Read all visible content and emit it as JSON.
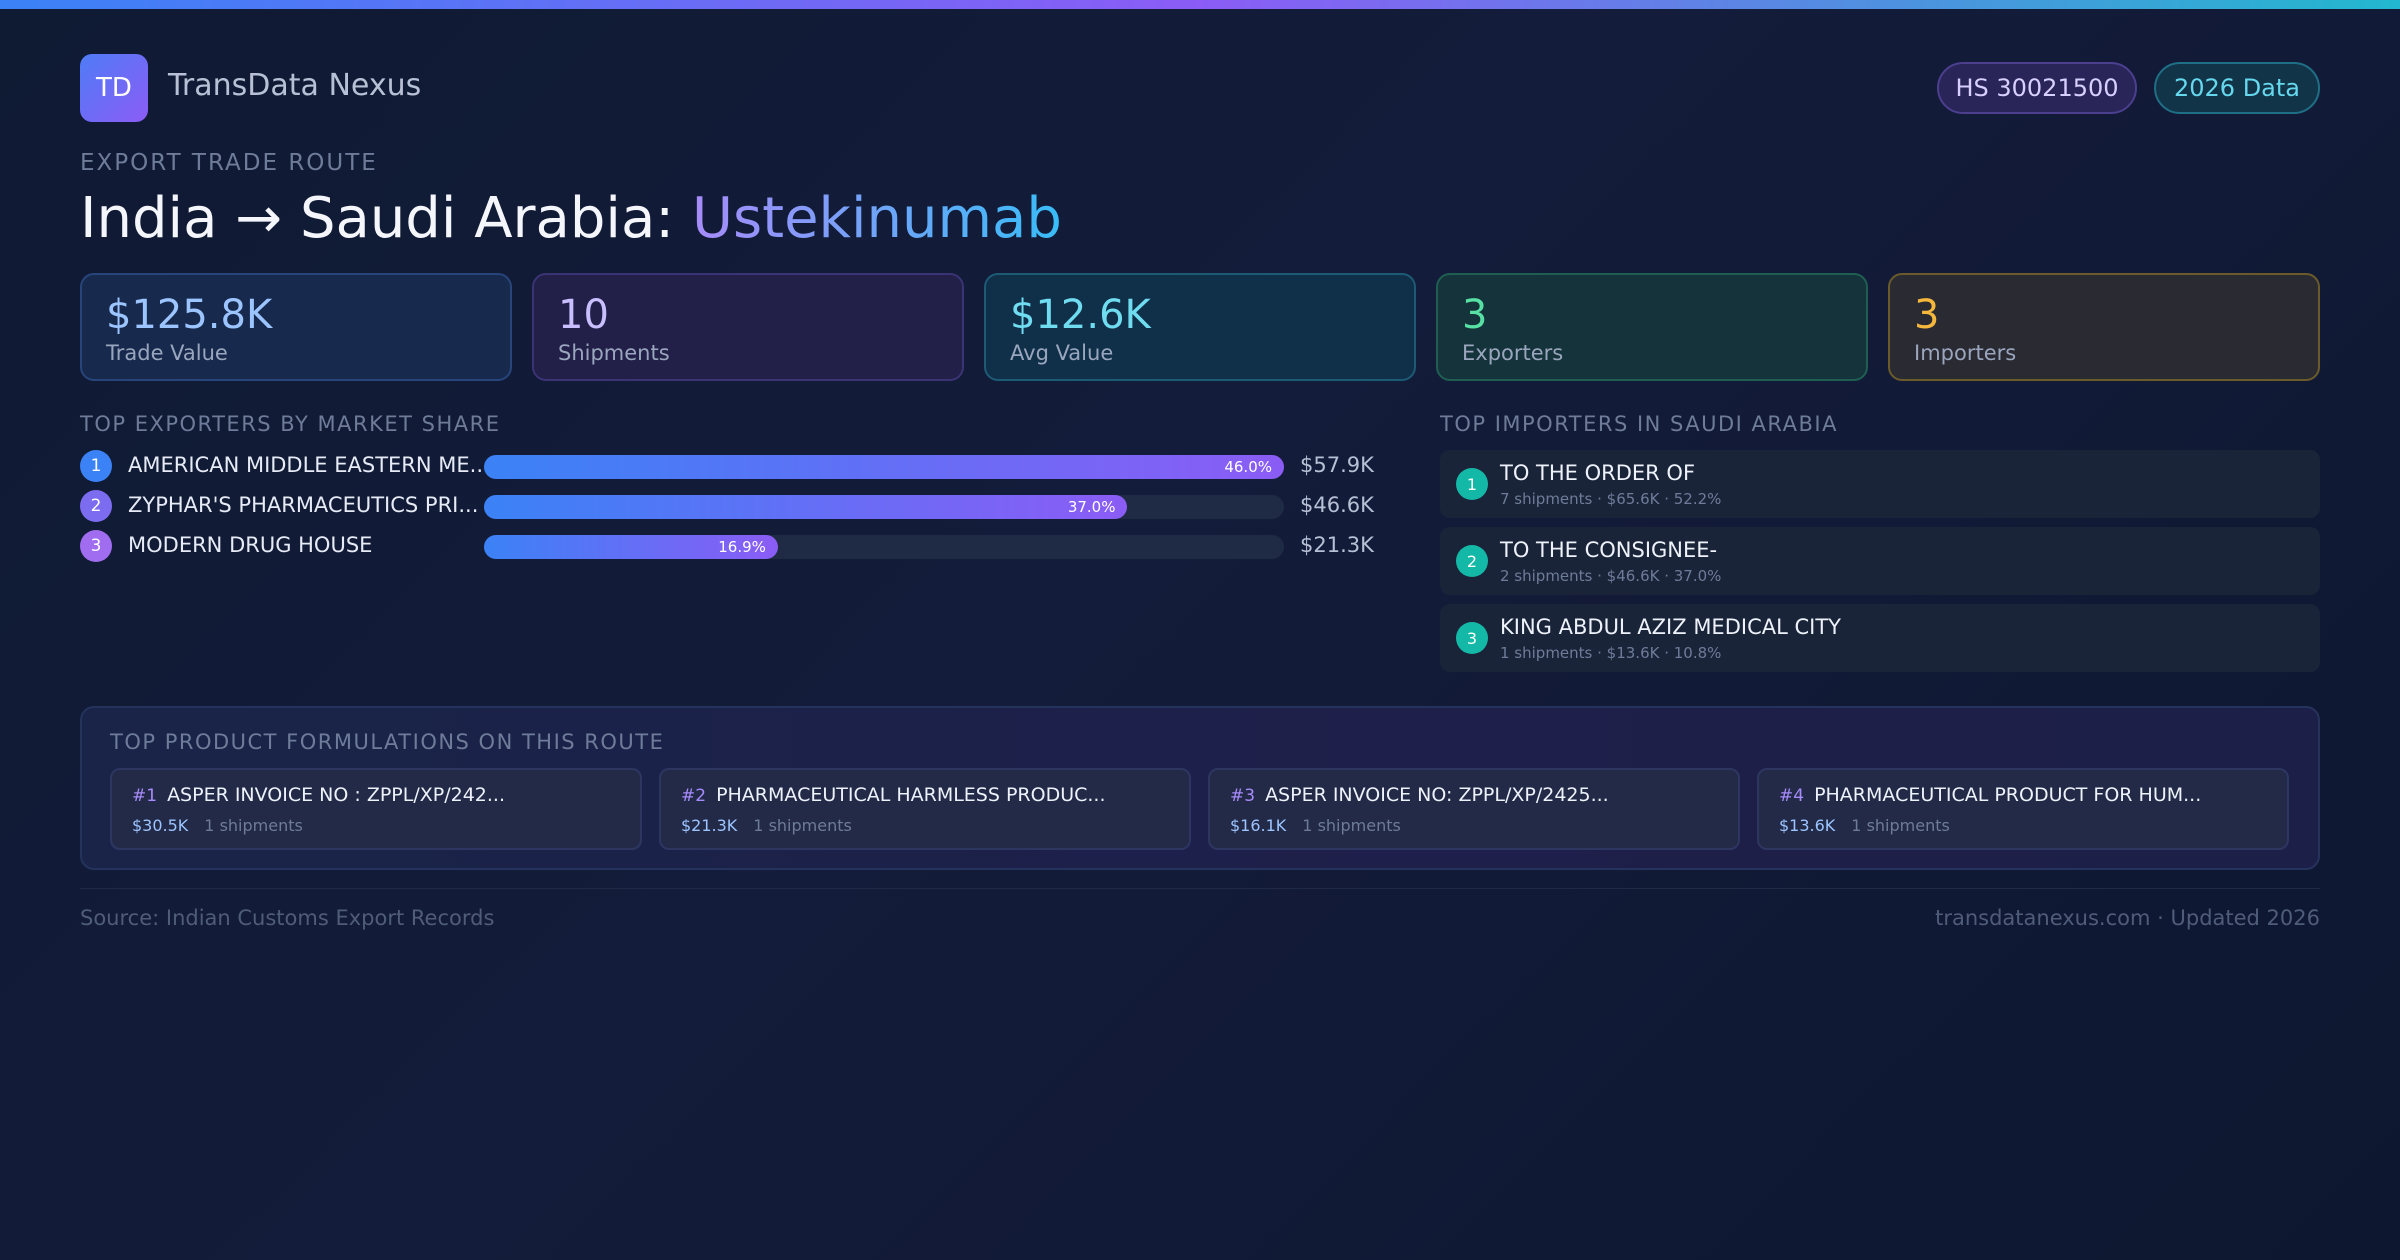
{
  "brand": {
    "logo_text": "TD",
    "name": "TransData Nexus"
  },
  "badges": {
    "hs_code": "HS 30021500",
    "data_year": "2026 Data"
  },
  "route": {
    "eyebrow": "EXPORT TRADE ROUTE",
    "title_prefix": "India → Saudi Arabia: ",
    "product": "Ustekinumab"
  },
  "stats": [
    {
      "value": "$125.8K",
      "label": "Trade Value",
      "color": "#9cc4ff"
    },
    {
      "value": "10",
      "label": "Shipments",
      "color": "#c9bfff"
    },
    {
      "value": "$12.6K",
      "label": "Avg Value",
      "color": "#6fdcf0"
    },
    {
      "value": "3",
      "label": "Exporters",
      "color": "#57e1a4"
    },
    {
      "value": "3",
      "label": "Importers",
      "color": "#f5b73c"
    }
  ],
  "exporters": {
    "heading": "TOP EXPORTERS BY MARKET SHARE",
    "items": [
      {
        "rank": "1",
        "name": "AMERICAN MIDDLE EASTERN ME...",
        "share": 46.0,
        "share_label": "46.0%",
        "value": "$57.9K",
        "rank_color": "#3b82f6"
      },
      {
        "rank": "2",
        "name": "ZYPHAR'S PHARMACEUTICS PRI...",
        "share": 37.0,
        "share_label": "37.0%",
        "value": "$46.6K",
        "rank_color": "#7c6cf0"
      },
      {
        "rank": "3",
        "name": "MODERN DRUG HOUSE",
        "share": 16.9,
        "share_label": "16.9%",
        "value": "$21.3K",
        "rank_color": "#a06cf0"
      }
    ]
  },
  "importers": {
    "heading": "TOP IMPORTERS IN SAUDI ARABIA",
    "items": [
      {
        "rank": "1",
        "name": "TO THE ORDER OF",
        "detail": "7 shipments · $65.6K · 52.2%"
      },
      {
        "rank": "2",
        "name": "TO THE CONSIGNEE-",
        "detail": "2 shipments · $46.6K · 37.0%"
      },
      {
        "rank": "3",
        "name": "KING ABDUL AZIZ MEDICAL CITY",
        "detail": "1 shipments · $13.6K · 10.8%"
      }
    ]
  },
  "formulations": {
    "heading": "TOP PRODUCT FORMULATIONS ON THIS ROUTE",
    "items": [
      {
        "num": "#1",
        "title": "ASPER INVOICE NO : ZPPL/XP/242...",
        "value": "$30.5K",
        "shipments": "1 shipments"
      },
      {
        "num": "#2",
        "title": "PHARMACEUTICAL HARMLESS PRODUC...",
        "value": "$21.3K",
        "shipments": "1 shipments"
      },
      {
        "num": "#3",
        "title": "ASPER INVOICE NO: ZPPL/XP/2425...",
        "value": "$16.1K",
        "shipments": "1 shipments"
      },
      {
        "num": "#4",
        "title": "PHARMACEUTICAL PRODUCT FOR HUM...",
        "value": "$13.6K",
        "shipments": "1 shipments"
      }
    ]
  },
  "footer": {
    "source": "Source: Indian Customs Export Records",
    "site": "transdatanexus.com · Updated 2026"
  }
}
